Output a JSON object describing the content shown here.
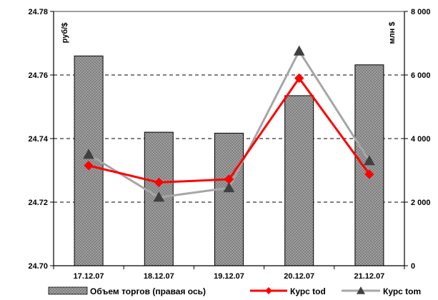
{
  "chart_data": {
    "type": "bar",
    "categories": [
      "17.12.07",
      "18.12.07",
      "19.12.07",
      "20.12.07",
      "21.12.07"
    ],
    "series": [
      {
        "name": "Объем торгов (правая ось)",
        "kind": "bar",
        "axis": "right",
        "color": "#808080",
        "values": [
          6600,
          4200,
          4170,
          5350,
          6320
        ]
      },
      {
        "name": "Курс tod",
        "kind": "line",
        "axis": "left",
        "color": "#ff0000",
        "marker": "diamond",
        "values": [
          24.7315,
          24.7262,
          24.7272,
          24.759,
          24.7288
        ]
      },
      {
        "name": "Курс tom",
        "kind": "line",
        "axis": "left",
        "color": "#a6a6a6",
        "marker": "triangle",
        "values": [
          24.735,
          24.7215,
          24.7245,
          24.7675,
          24.733
        ]
      }
    ],
    "left_axis": {
      "label": "руб/$",
      "ylim": [
        24.7,
        24.78
      ],
      "ticks": [
        "24.70",
        "24.72",
        "24.74",
        "24.76",
        "24.78"
      ]
    },
    "right_axis": {
      "label": "млн $",
      "ylim": [
        0,
        8000
      ],
      "ticks": [
        "0",
        "2 000",
        "4 000",
        "6 000",
        "8 000"
      ]
    },
    "grid": "horizontal-dashed",
    "legend_position": "bottom"
  }
}
